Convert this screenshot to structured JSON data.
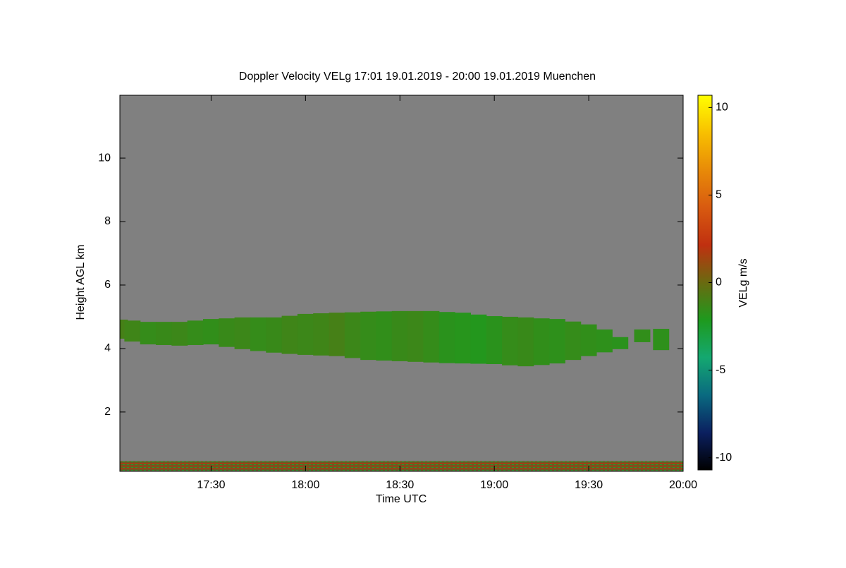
{
  "chart_data": {
    "type": "time-height",
    "title": "Doppler Velocity VELg   17:01 19.01.2019 - 20:00 19.01.2019 Muenchen",
    "x_label": "Time UTC",
    "y_label": "Height AGL km",
    "colorbar_label": "VELg m/s",
    "background": "#808080",
    "xlim": [
      1021,
      1200
    ],
    "xticks": [
      {
        "value": 1050,
        "label": "17:30"
      },
      {
        "value": 1080,
        "label": "18:00"
      },
      {
        "value": 1110,
        "label": "18:30"
      },
      {
        "value": 1140,
        "label": "19:00"
      },
      {
        "value": 1170,
        "label": "19:30"
      },
      {
        "value": 1200,
        "label": "20:00"
      }
    ],
    "ylim": [
      0.13,
      11.98
    ],
    "yticks": [
      2,
      4,
      6,
      8,
      10
    ],
    "clim": [
      -10.7,
      10.7
    ],
    "cticks": [
      -10,
      -5,
      0,
      5,
      10
    ],
    "colorscale": [
      "#000000",
      "#0b2060",
      "#0a6a80",
      "#14a870",
      "#1e9a1e",
      "#6a6a10",
      "#c03010",
      "#d85a10",
      "#e88a08",
      "#f8c000",
      "#ffff00"
    ],
    "layer": {
      "x": [
        1021,
        1025,
        1030,
        1035,
        1040,
        1045,
        1050,
        1055,
        1060,
        1065,
        1070,
        1075,
        1080,
        1085,
        1090,
        1095,
        1100,
        1105,
        1110,
        1115,
        1120,
        1125,
        1130,
        1135,
        1140,
        1145,
        1150,
        1155,
        1160,
        1165,
        1170,
        1175,
        1180,
        1187,
        1193
      ],
      "top": [
        4.91,
        4.88,
        4.84,
        4.84,
        4.84,
        4.88,
        4.93,
        4.95,
        4.98,
        4.98,
        4.98,
        5.03,
        5.09,
        5.11,
        5.13,
        5.14,
        5.16,
        5.17,
        5.18,
        5.18,
        5.18,
        5.15,
        5.13,
        5.07,
        5.02,
        5.0,
        4.98,
        4.95,
        4.93,
        4.85,
        4.76,
        4.6,
        4.36,
        4.6,
        4.62
      ],
      "base": [
        4.31,
        4.22,
        4.13,
        4.11,
        4.09,
        4.11,
        4.13,
        4.05,
        3.98,
        3.92,
        3.87,
        3.83,
        3.8,
        3.78,
        3.76,
        3.7,
        3.64,
        3.62,
        3.6,
        3.58,
        3.56,
        3.54,
        3.53,
        3.52,
        3.51,
        3.47,
        3.44,
        3.48,
        3.53,
        3.64,
        3.76,
        3.88,
        3.98,
        4.2,
        3.95
      ],
      "velocity": [
        -1.0,
        -1.2,
        -1.5,
        -1.4,
        -1.3,
        -1.5,
        -1.6,
        -1.4,
        -1.3,
        -1.5,
        -1.4,
        -1.2,
        -1.3,
        -1.2,
        -1.0,
        -1.3,
        -1.5,
        -1.6,
        -1.4,
        -1.3,
        -1.5,
        -1.8,
        -1.9,
        -2.0,
        -1.8,
        -1.5,
        -1.4,
        -1.6,
        -1.7,
        -1.5,
        -1.6,
        -1.7,
        -1.8,
        -1.6,
        -1.7
      ]
    },
    "ground_clutter": {
      "base": 0.15,
      "top": 0.45
    }
  }
}
